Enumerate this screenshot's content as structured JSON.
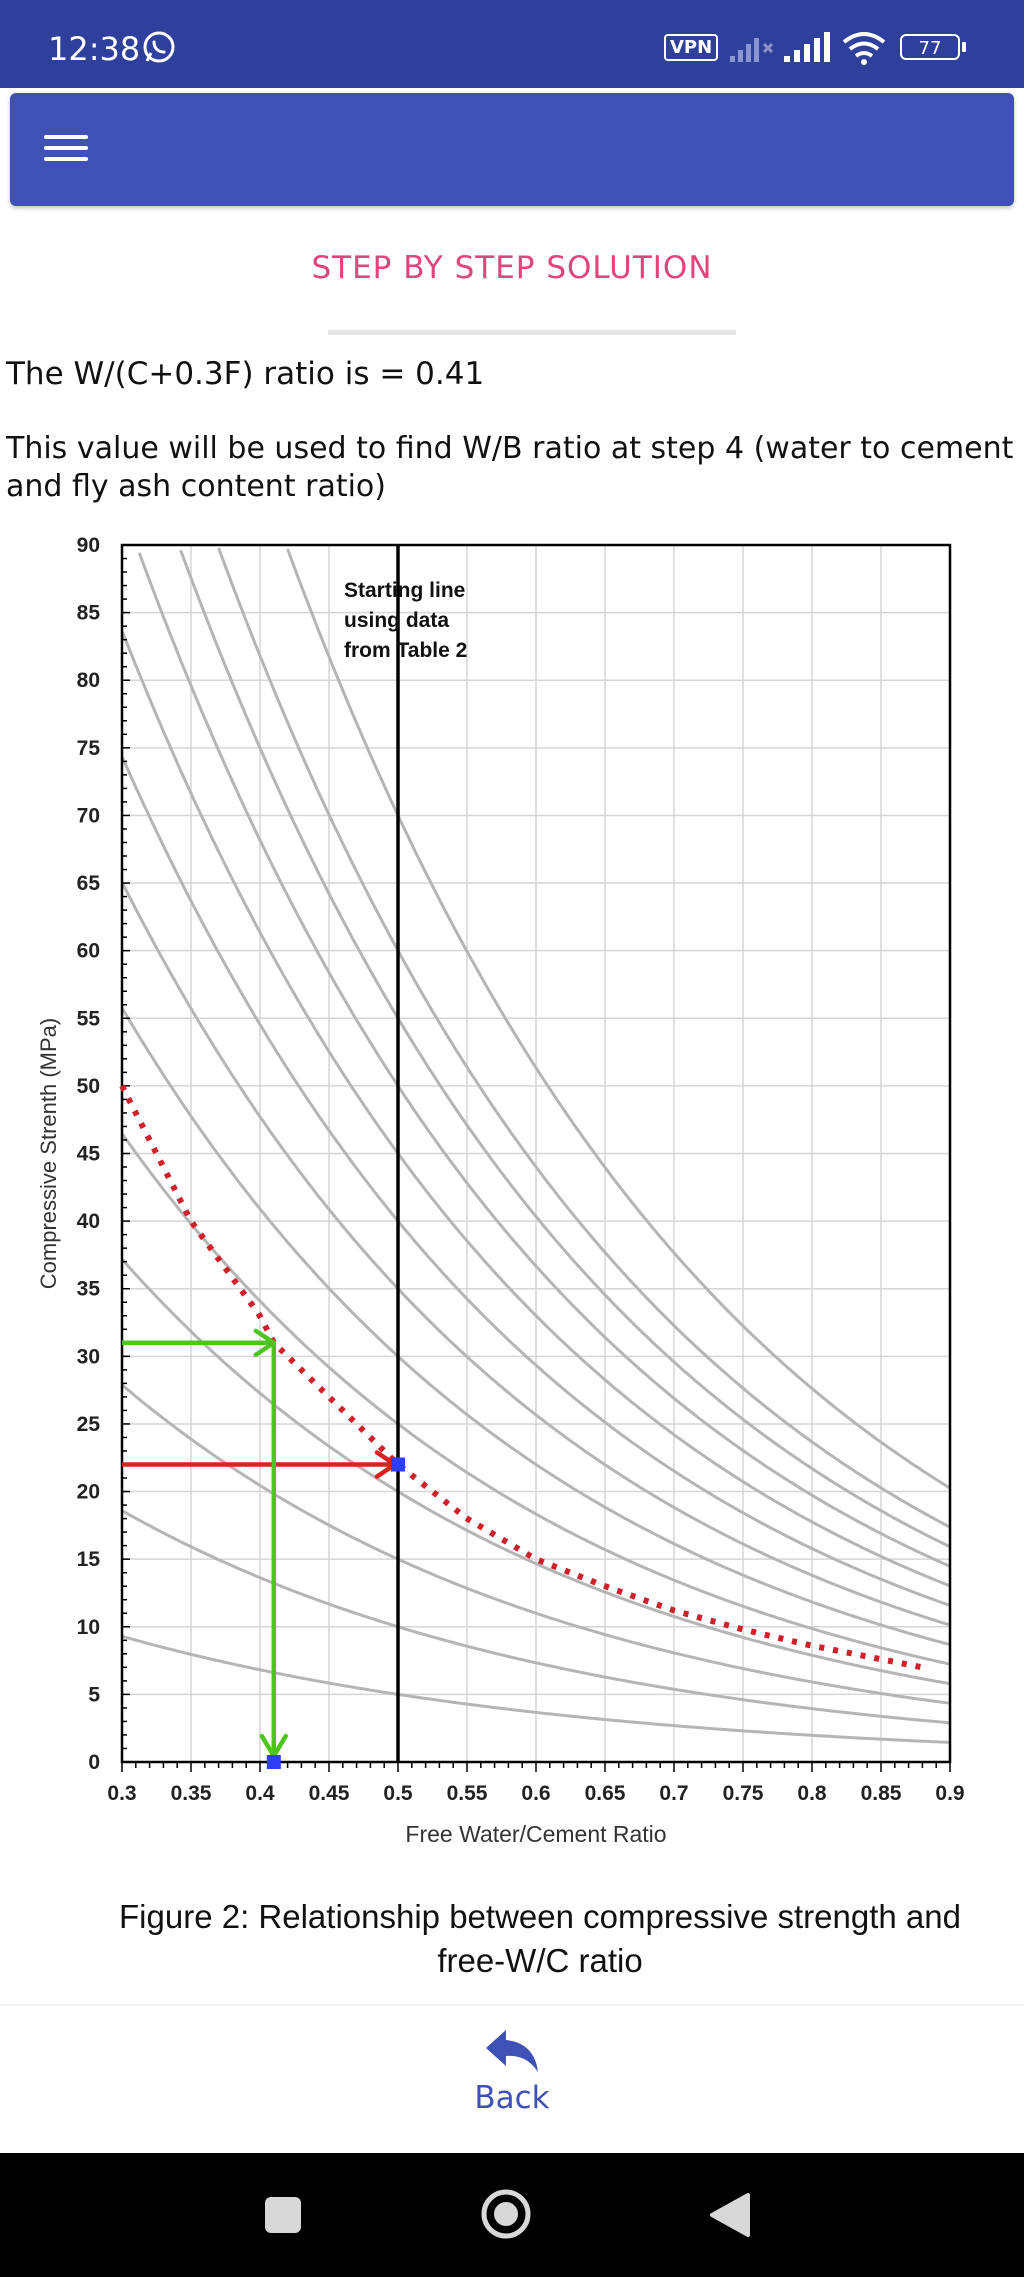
{
  "status_bar": {
    "time": "12:38",
    "vpn": "VPN",
    "battery": "77",
    "icons": [
      "whatsapp-icon",
      "signal-icon",
      "wifi-icon",
      "battery-icon"
    ]
  },
  "app_bar": {
    "menu_icon": "menu-icon"
  },
  "heading": "STEP BY STEP SOLUTION",
  "result_text": "The W/(C+0.3F) ratio is = 0.41",
  "note_text": " This value will be used to find W/B ratio at step 4 (water to cement and fly ash content ratio)",
  "chart_data": {
    "type": "line",
    "xlabel": "Free Water/Cement Ratio",
    "ylabel": "Compressive Strenth (MPa)",
    "xlim": [
      0.3,
      0.9
    ],
    "ylim": [
      0,
      90
    ],
    "x_ticks": [
      "0.3",
      "0.35",
      "0.4",
      "0.45",
      "0.5",
      "0.55",
      "0.6",
      "0.65",
      "0.7",
      "0.75",
      "0.8",
      "0.85",
      "0.9"
    ],
    "y_ticks": [
      "0",
      "5",
      "10",
      "15",
      "20",
      "25",
      "30",
      "35",
      "40",
      "45",
      "50",
      "55",
      "60",
      "65",
      "70",
      "75",
      "80",
      "85",
      "90"
    ],
    "grid": true,
    "annotation": [
      "Starting line",
      "using data",
      "from Table 2"
    ],
    "starting_line_x": 0.5,
    "curves_at_0_5": [
      5,
      10,
      15,
      20,
      25,
      30,
      35,
      40,
      45,
      50,
      55,
      60,
      70
    ],
    "dotted_curve": {
      "x": [
        0.3,
        0.35,
        0.4,
        0.41,
        0.45,
        0.5,
        0.55,
        0.6,
        0.65,
        0.7,
        0.75,
        0.8,
        0.85,
        0.88
      ],
      "y": [
        50,
        40,
        33,
        31,
        27,
        22,
        18,
        15,
        13,
        11.2,
        9.8,
        8.6,
        7.6,
        7
      ]
    },
    "red_arrow": {
      "x": [
        0.3,
        0.5
      ],
      "y": 22
    },
    "green_arrow": {
      "y": 31,
      "x": [
        0.3,
        0.41
      ],
      "drop_to_x": 0.41
    },
    "marker_points": [
      {
        "x": 0.5,
        "y": 22
      },
      {
        "x": 0.41,
        "y": 0
      }
    ],
    "colors": {
      "curve": "#b5b5b5",
      "dotted": "#d0202a",
      "red_arrow": "#e02020",
      "green_arrow": "#4cc51e",
      "marker": "#2d3ef5"
    }
  },
  "caption_line1": "Figure 2: Relationship between compressive strength and",
  "caption_line2": "free-W/C ratio",
  "back_button": {
    "label": "Back",
    "icon": "reply-arrow-icon"
  },
  "nav_bar": {
    "icons": [
      "recents-square-icon",
      "home-circle-icon",
      "back-triangle-icon"
    ]
  }
}
